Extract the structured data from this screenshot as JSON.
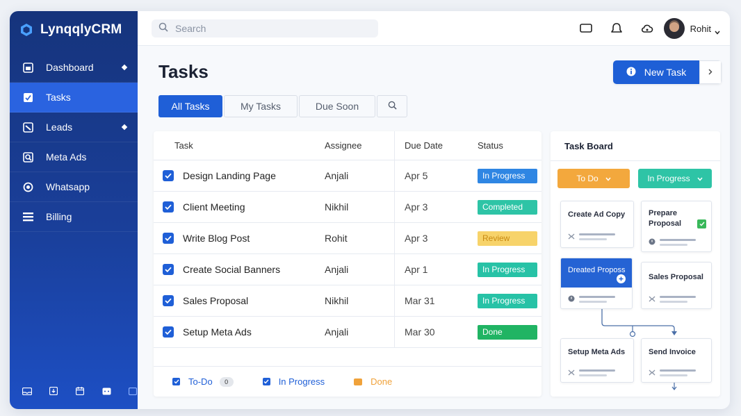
{
  "app": {
    "brand": "LynqqlyCRM"
  },
  "sidebar": {
    "items": [
      {
        "label": "Dashboard",
        "icon": "dashboard-icon",
        "marker": true,
        "active": false
      },
      {
        "label": "Tasks",
        "icon": "tasks-icon",
        "marker": false,
        "active": true
      },
      {
        "label": "Leads",
        "icon": "leads-icon",
        "marker": true,
        "active": false
      },
      {
        "label": "Meta Ads",
        "icon": "meta-ads-icon",
        "marker": false,
        "active": false
      },
      {
        "label": "Whatsapp",
        "icon": "whatsapp-icon",
        "marker": false,
        "active": false
      },
      {
        "label": "Billing",
        "icon": "billing-icon",
        "marker": false,
        "active": false
      }
    ],
    "bottom_icons": [
      "inbox-icon",
      "download-icon",
      "calendar-icon",
      "chat-icon",
      "panel-icon"
    ]
  },
  "topbar": {
    "search_placeholder": "Search",
    "icons": [
      "message-icon",
      "bell-icon",
      "cloud-icon"
    ],
    "user_name": "Rohit"
  },
  "page": {
    "title": "Tasks",
    "new_task_label": "New Task"
  },
  "tabs": [
    {
      "label": "All Tasks",
      "active": true
    },
    {
      "label": "My Tasks",
      "active": false
    },
    {
      "label": "Due Soon",
      "active": false
    }
  ],
  "table": {
    "headers": {
      "task": "Task",
      "assignee": "Assignee",
      "due": "Due Date",
      "status": "Status"
    },
    "rows": [
      {
        "task": "Design Landing Page",
        "assignee": "Anjali",
        "due": "Apr 5",
        "status": "In Progress",
        "color": "#2f86e3"
      },
      {
        "task": "Client Meeting",
        "assignee": "Nikhil",
        "due": "Apr 3",
        "status": "Completed",
        "color": "#2ec4a6"
      },
      {
        "task": "Write Blog Post",
        "assignee": "Rohit",
        "due": "Apr 3",
        "status": "Review",
        "color": "#f7d36a"
      },
      {
        "task": "Create Social Banners",
        "assignee": "Anjali",
        "due": "Apr 1",
        "status": "In Progress",
        "color": "#27c2a6"
      },
      {
        "task": "Sales Proposal",
        "assignee": "Nikhil",
        "due": "Mar 31",
        "status": "In Progress",
        "color": "#27c2a6"
      },
      {
        "task": "Setup Meta Ads",
        "assignee": "Anjali",
        "due": "Mar 30",
        "status": "Done",
        "color": "#20b463"
      }
    ],
    "legend": [
      {
        "label": "To-Do",
        "count": "0",
        "color": "#1f5fd7"
      },
      {
        "label": "In Progress",
        "color": "#1f5fd7"
      },
      {
        "label": "Done",
        "color": "#f0a23a"
      }
    ]
  },
  "board": {
    "title": "Task Board",
    "columns": [
      {
        "label": "To Do",
        "color": "#f3a83d"
      },
      {
        "label": "In Progress",
        "color": "#2ec4a6"
      }
    ],
    "cards": {
      "c1": "Create Ad Copy",
      "c2": "Prepare\nProposal",
      "c3": "Dreated Proposs",
      "c4": "Sales Proposal",
      "c5": "Setup Meta Ads",
      "c6": "Send Invoice"
    }
  }
}
